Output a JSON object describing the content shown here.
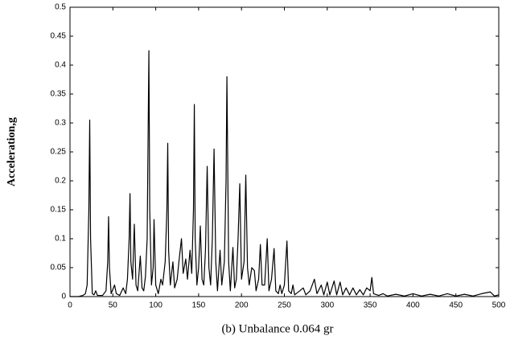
{
  "chart_data": {
    "type": "line",
    "caption": "(b) Unbalance 0.064 gr",
    "y_label": "Acceleration,g",
    "color": "#000000",
    "x": [
      0,
      10,
      15,
      18,
      20,
      22,
      23,
      24,
      26,
      28,
      30,
      32,
      38,
      42,
      44,
      45,
      46,
      48,
      52,
      54,
      58,
      62,
      65,
      67,
      69,
      70,
      71,
      73,
      75,
      77,
      79,
      82,
      84,
      86,
      88,
      90,
      92,
      93,
      95,
      97,
      98,
      100,
      103,
      106,
      108,
      111,
      113,
      114,
      115,
      117,
      120,
      122,
      125,
      127,
      130,
      132,
      135,
      137,
      140,
      142,
      144,
      145,
      146,
      148,
      150,
      152,
      154,
      156,
      158,
      160,
      162,
      164,
      166,
      168,
      170,
      172,
      175,
      177,
      180,
      182,
      183,
      185,
      187,
      190,
      192,
      194,
      196,
      198,
      200,
      203,
      205,
      207,
      209,
      212,
      215,
      217,
      220,
      222,
      224,
      227,
      230,
      232,
      235,
      238,
      240,
      243,
      245,
      247,
      250,
      253,
      255,
      258,
      260,
      262,
      268,
      272,
      275,
      280,
      285,
      288,
      293,
      296,
      300,
      303,
      308,
      311,
      315,
      318,
      322,
      326,
      330,
      334,
      338,
      342,
      346,
      350,
      352,
      354,
      360,
      365,
      370,
      380,
      390,
      400,
      410,
      420,
      430,
      440,
      450,
      460,
      470,
      480,
      490,
      495,
      500
    ],
    "values": [
      0,
      0,
      0.002,
      0.005,
      0.02,
      0.15,
      0.305,
      0.1,
      0.005,
      0.003,
      0.01,
      0.002,
      0.002,
      0.01,
      0.06,
      0.138,
      0.05,
      0.005,
      0.02,
      0.005,
      0.002,
      0.015,
      0.005,
      0.03,
      0.1,
      0.178,
      0.06,
      0.03,
      0.125,
      0.02,
      0.01,
      0.07,
      0.015,
      0.01,
      0.035,
      0.1,
      0.425,
      0.15,
      0.02,
      0.05,
      0.133,
      0.02,
      0.005,
      0.03,
      0.02,
      0.06,
      0.15,
      0.265,
      0.08,
      0.02,
      0.06,
      0.015,
      0.03,
      0.06,
      0.1,
      0.04,
      0.065,
      0.03,
      0.08,
      0.04,
      0.15,
      0.332,
      0.1,
      0.02,
      0.05,
      0.122,
      0.03,
      0.02,
      0.08,
      0.225,
      0.05,
      0.02,
      0.1,
      0.255,
      0.06,
      0.01,
      0.08,
      0.02,
      0.06,
      0.2,
      0.38,
      0.06,
      0.01,
      0.085,
      0.015,
      0.03,
      0.1,
      0.195,
      0.03,
      0.06,
      0.21,
      0.05,
      0.02,
      0.05,
      0.045,
      0.01,
      0.03,
      0.09,
      0.02,
      0.02,
      0.1,
      0.01,
      0.03,
      0.083,
      0.01,
      0.005,
      0.02,
      0.005,
      0.02,
      0.096,
      0.01,
      0.005,
      0.02,
      0.003,
      0.01,
      0.015,
      0.003,
      0.01,
      0.03,
      0.005,
      0.02,
      0.003,
      0.025,
      0.003,
      0.027,
      0.003,
      0.025,
      0.003,
      0.015,
      0.003,
      0.015,
      0.003,
      0.012,
      0.003,
      0.015,
      0.01,
      0.033,
      0.005,
      0.002,
      0.005,
      0.001,
      0.004,
      0.001,
      0.005,
      0.001,
      0.004,
      0.001,
      0.005,
      0.001,
      0.004,
      0.001,
      0.005,
      0.008,
      0.001,
      0.003
    ],
    "xlim": [
      0,
      500
    ],
    "ylim": [
      0,
      0.5
    ],
    "xticks": [
      0,
      50,
      100,
      150,
      200,
      250,
      300,
      350,
      400,
      450,
      500
    ],
    "yticks": [
      0,
      0.05,
      0.1,
      0.15,
      0.2,
      0.25,
      0.3,
      0.35,
      0.4,
      0.45,
      0.5
    ]
  }
}
